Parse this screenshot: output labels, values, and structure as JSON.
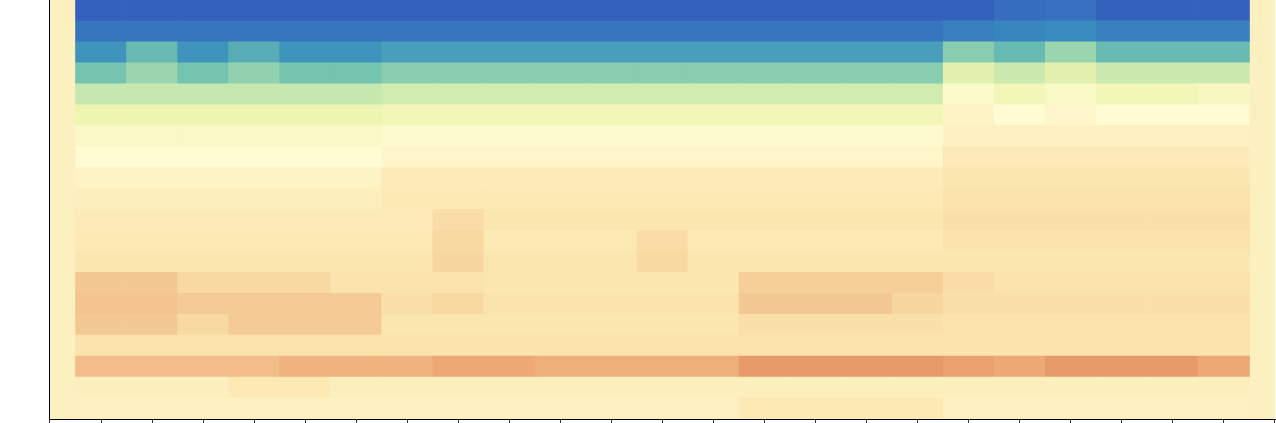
{
  "chart_data": {
    "type": "heatmap",
    "xlim": [
      0,
      23
    ],
    "xticks": [
      0,
      1,
      2,
      3,
      4,
      5,
      6,
      7,
      8,
      9,
      10,
      11,
      12,
      13,
      14,
      15,
      16,
      17,
      18,
      19,
      20,
      21,
      22,
      23
    ],
    "ylim": [
      0,
      20
    ],
    "tick_labels": false,
    "cells": [
      [
        0.46,
        0.46,
        0.46,
        0.46,
        0.46,
        0.46,
        0.46,
        0.46,
        0.46,
        0.46,
        0.46,
        0.46,
        0.46,
        0.43,
        0.43,
        0.43,
        0.43,
        0.46,
        0.46,
        0.46,
        0.46,
        0.46,
        0.46
      ],
      [
        0.45,
        0.45,
        0.45,
        0.43,
        0.43,
        0.45,
        0.45,
        0.45,
        0.45,
        0.45,
        0.45,
        0.45,
        0.45,
        0.45,
        0.45,
        0.45,
        0.45,
        0.45,
        0.45,
        0.45,
        0.45,
        0.45,
        0.45
      ],
      [
        0.3,
        0.3,
        0.3,
        0.3,
        0.27,
        0.27,
        0.27,
        0.24,
        0.24,
        0.26,
        0.26,
        0.26,
        0.26,
        0.2,
        0.2,
        0.2,
        0.2,
        0.22,
        0.24,
        0.2,
        0.2,
        0.2,
        0.24
      ],
      [
        0.41,
        0.41,
        0.41,
        0.41,
        0.41,
        0.41,
        0.41,
        0.41,
        0.41,
        0.41,
        0.41,
        0.41,
        0.41,
        0.41,
        0.41,
        0.41,
        0.41,
        0.41,
        0.41,
        0.41,
        0.41,
        0.41,
        0.41
      ],
      [
        0.33,
        0.33,
        0.38,
        0.34,
        0.34,
        0.34,
        0.42,
        0.42,
        0.42,
        0.42,
        0.42,
        0.42,
        0.42,
        0.4,
        0.4,
        0.4,
        0.4,
        0.41,
        0.41,
        0.41,
        0.41,
        0.41,
        0.41
      ],
      [
        0.32,
        0.32,
        0.34,
        0.34,
        0.34,
        0.34,
        0.4,
        0.38,
        0.41,
        0.41,
        0.41,
        0.41,
        0.41,
        0.33,
        0.33,
        0.33,
        0.37,
        0.4,
        0.4,
        0.4,
        0.4,
        0.4,
        0.4
      ],
      [
        0.33,
        0.33,
        0.38,
        0.38,
        0.38,
        0.41,
        0.41,
        0.41,
        0.42,
        0.42,
        0.42,
        0.42,
        0.42,
        0.35,
        0.35,
        0.35,
        0.35,
        0.39,
        0.41,
        0.41,
        0.41,
        0.41,
        0.41
      ],
      [
        0.42,
        0.42,
        0.42,
        0.42,
        0.42,
        0.42,
        0.42,
        0.37,
        0.42,
        0.42,
        0.42,
        0.38,
        0.42,
        0.42,
        0.42,
        0.42,
        0.42,
        0.42,
        0.42,
        0.42,
        0.42,
        0.42,
        0.42
      ],
      [
        0.43,
        0.43,
        0.43,
        0.43,
        0.43,
        0.43,
        0.43,
        0.38,
        0.43,
        0.43,
        0.43,
        0.39,
        0.43,
        0.43,
        0.43,
        0.43,
        0.43,
        0.41,
        0.41,
        0.41,
        0.41,
        0.41,
        0.41
      ],
      [
        0.44,
        0.44,
        0.44,
        0.44,
        0.44,
        0.44,
        0.44,
        0.39,
        0.42,
        0.42,
        0.42,
        0.42,
        0.42,
        0.42,
        0.42,
        0.42,
        0.42,
        0.4,
        0.4,
        0.4,
        0.4,
        0.4,
        0.4
      ],
      [
        0.45,
        0.45,
        0.45,
        0.45,
        0.45,
        0.45,
        0.43,
        0.43,
        0.43,
        0.43,
        0.43,
        0.43,
        0.43,
        0.43,
        0.43,
        0.43,
        0.43,
        0.41,
        0.41,
        0.41,
        0.41,
        0.41,
        0.41
      ],
      [
        0.47,
        0.47,
        0.47,
        0.47,
        0.47,
        0.47,
        0.44,
        0.44,
        0.44,
        0.44,
        0.44,
        0.44,
        0.44,
        0.44,
        0.44,
        0.44,
        0.44,
        0.42,
        0.42,
        0.42,
        0.42,
        0.42,
        0.42
      ],
      [
        0.5,
        0.5,
        0.5,
        0.5,
        0.5,
        0.5,
        0.48,
        0.48,
        0.48,
        0.48,
        0.48,
        0.48,
        0.48,
        0.48,
        0.48,
        0.48,
        0.48,
        0.44,
        0.44,
        0.44,
        0.44,
        0.44,
        0.44
      ],
      [
        0.53,
        0.53,
        0.53,
        0.53,
        0.53,
        0.53,
        0.51,
        0.51,
        0.51,
        0.51,
        0.51,
        0.51,
        0.51,
        0.51,
        0.51,
        0.51,
        0.51,
        0.46,
        0.46,
        0.46,
        0.46,
        0.46,
        0.46
      ],
      [
        0.58,
        0.58,
        0.58,
        0.58,
        0.58,
        0.58,
        0.56,
        0.56,
        0.56,
        0.56,
        0.56,
        0.56,
        0.56,
        0.56,
        0.56,
        0.56,
        0.56,
        0.47,
        0.5,
        0.48,
        0.5,
        0.5,
        0.5
      ],
      [
        0.65,
        0.65,
        0.65,
        0.65,
        0.65,
        0.65,
        0.63,
        0.63,
        0.63,
        0.63,
        0.63,
        0.63,
        0.63,
        0.63,
        0.63,
        0.63,
        0.63,
        0.52,
        0.56,
        0.53,
        0.56,
        0.56,
        0.54
      ],
      [
        0.74,
        0.7,
        0.74,
        0.71,
        0.74,
        0.74,
        0.72,
        0.72,
        0.72,
        0.72,
        0.72,
        0.72,
        0.72,
        0.72,
        0.72,
        0.72,
        0.72,
        0.6,
        0.64,
        0.6,
        0.64,
        0.64,
        0.64
      ],
      [
        0.84,
        0.76,
        0.84,
        0.79,
        0.84,
        0.84,
        0.82,
        0.82,
        0.82,
        0.82,
        0.82,
        0.82,
        0.82,
        0.82,
        0.82,
        0.82,
        0.82,
        0.72,
        0.76,
        0.7,
        0.76,
        0.76,
        0.76
      ],
      [
        0.93,
        0.93,
        0.93,
        0.93,
        0.93,
        0.93,
        0.93,
        0.93,
        0.93,
        0.93,
        0.93,
        0.93,
        0.93,
        0.93,
        0.93,
        0.93,
        0.93,
        0.9,
        0.88,
        0.86,
        0.9,
        0.9,
        0.9
      ],
      [
        1,
        1,
        1,
        1,
        1,
        1,
        1,
        1,
        1,
        1,
        1,
        1,
        1,
        1,
        1,
        1,
        1,
        1,
        0.96,
        0.95,
        1,
        1,
        1
      ]
    ]
  }
}
